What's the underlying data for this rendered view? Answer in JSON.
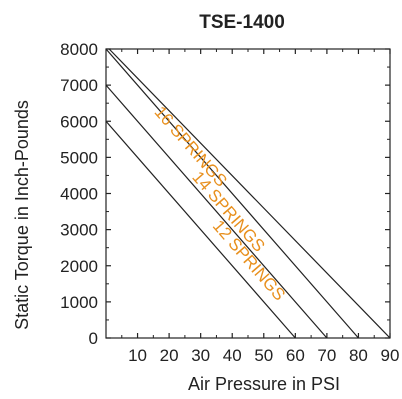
{
  "chart_data": {
    "type": "line",
    "title": "TSE-1400",
    "xlabel": "Air Pressure in PSI",
    "ylabel": "Static Torque in Inch-Pounds",
    "xlim": [
      0,
      90
    ],
    "ylim": [
      0,
      8000
    ],
    "x_ticks": [
      10,
      20,
      30,
      40,
      50,
      60,
      70,
      80,
      90
    ],
    "x_tick_labels": [
      "10",
      "20",
      "30",
      "40",
      "50",
      "60",
      "70",
      "80",
      "90"
    ],
    "y_ticks": [
      0,
      1000,
      2000,
      3000,
      4000,
      5000,
      6000,
      7000,
      8000
    ],
    "y_tick_labels": [
      "0",
      "1000",
      "2000",
      "3000",
      "4000",
      "5000",
      "6000",
      "7000",
      "8000"
    ],
    "grid": false,
    "line_color": "#222222",
    "label_color": "#E8901E",
    "series": [
      {
        "name": "16 SPRINGS",
        "x": [
          0,
          80
        ],
        "y": [
          8000,
          0
        ],
        "label_x": 25.5,
        "label_y": 5200
      },
      {
        "name": "14 SPRINGS",
        "x": [
          0,
          70
        ],
        "y": [
          7000,
          0
        ],
        "label_x": 37.5,
        "label_y": 3400
      },
      {
        "name": "12 SPRINGS",
        "x": [
          0,
          60
        ],
        "y": [
          6000,
          0
        ],
        "label_x": 44,
        "label_y": 2050
      }
    ],
    "extra_lines": [
      {
        "x": [
          1,
          90
        ],
        "y": [
          8000,
          0
        ]
      }
    ]
  }
}
